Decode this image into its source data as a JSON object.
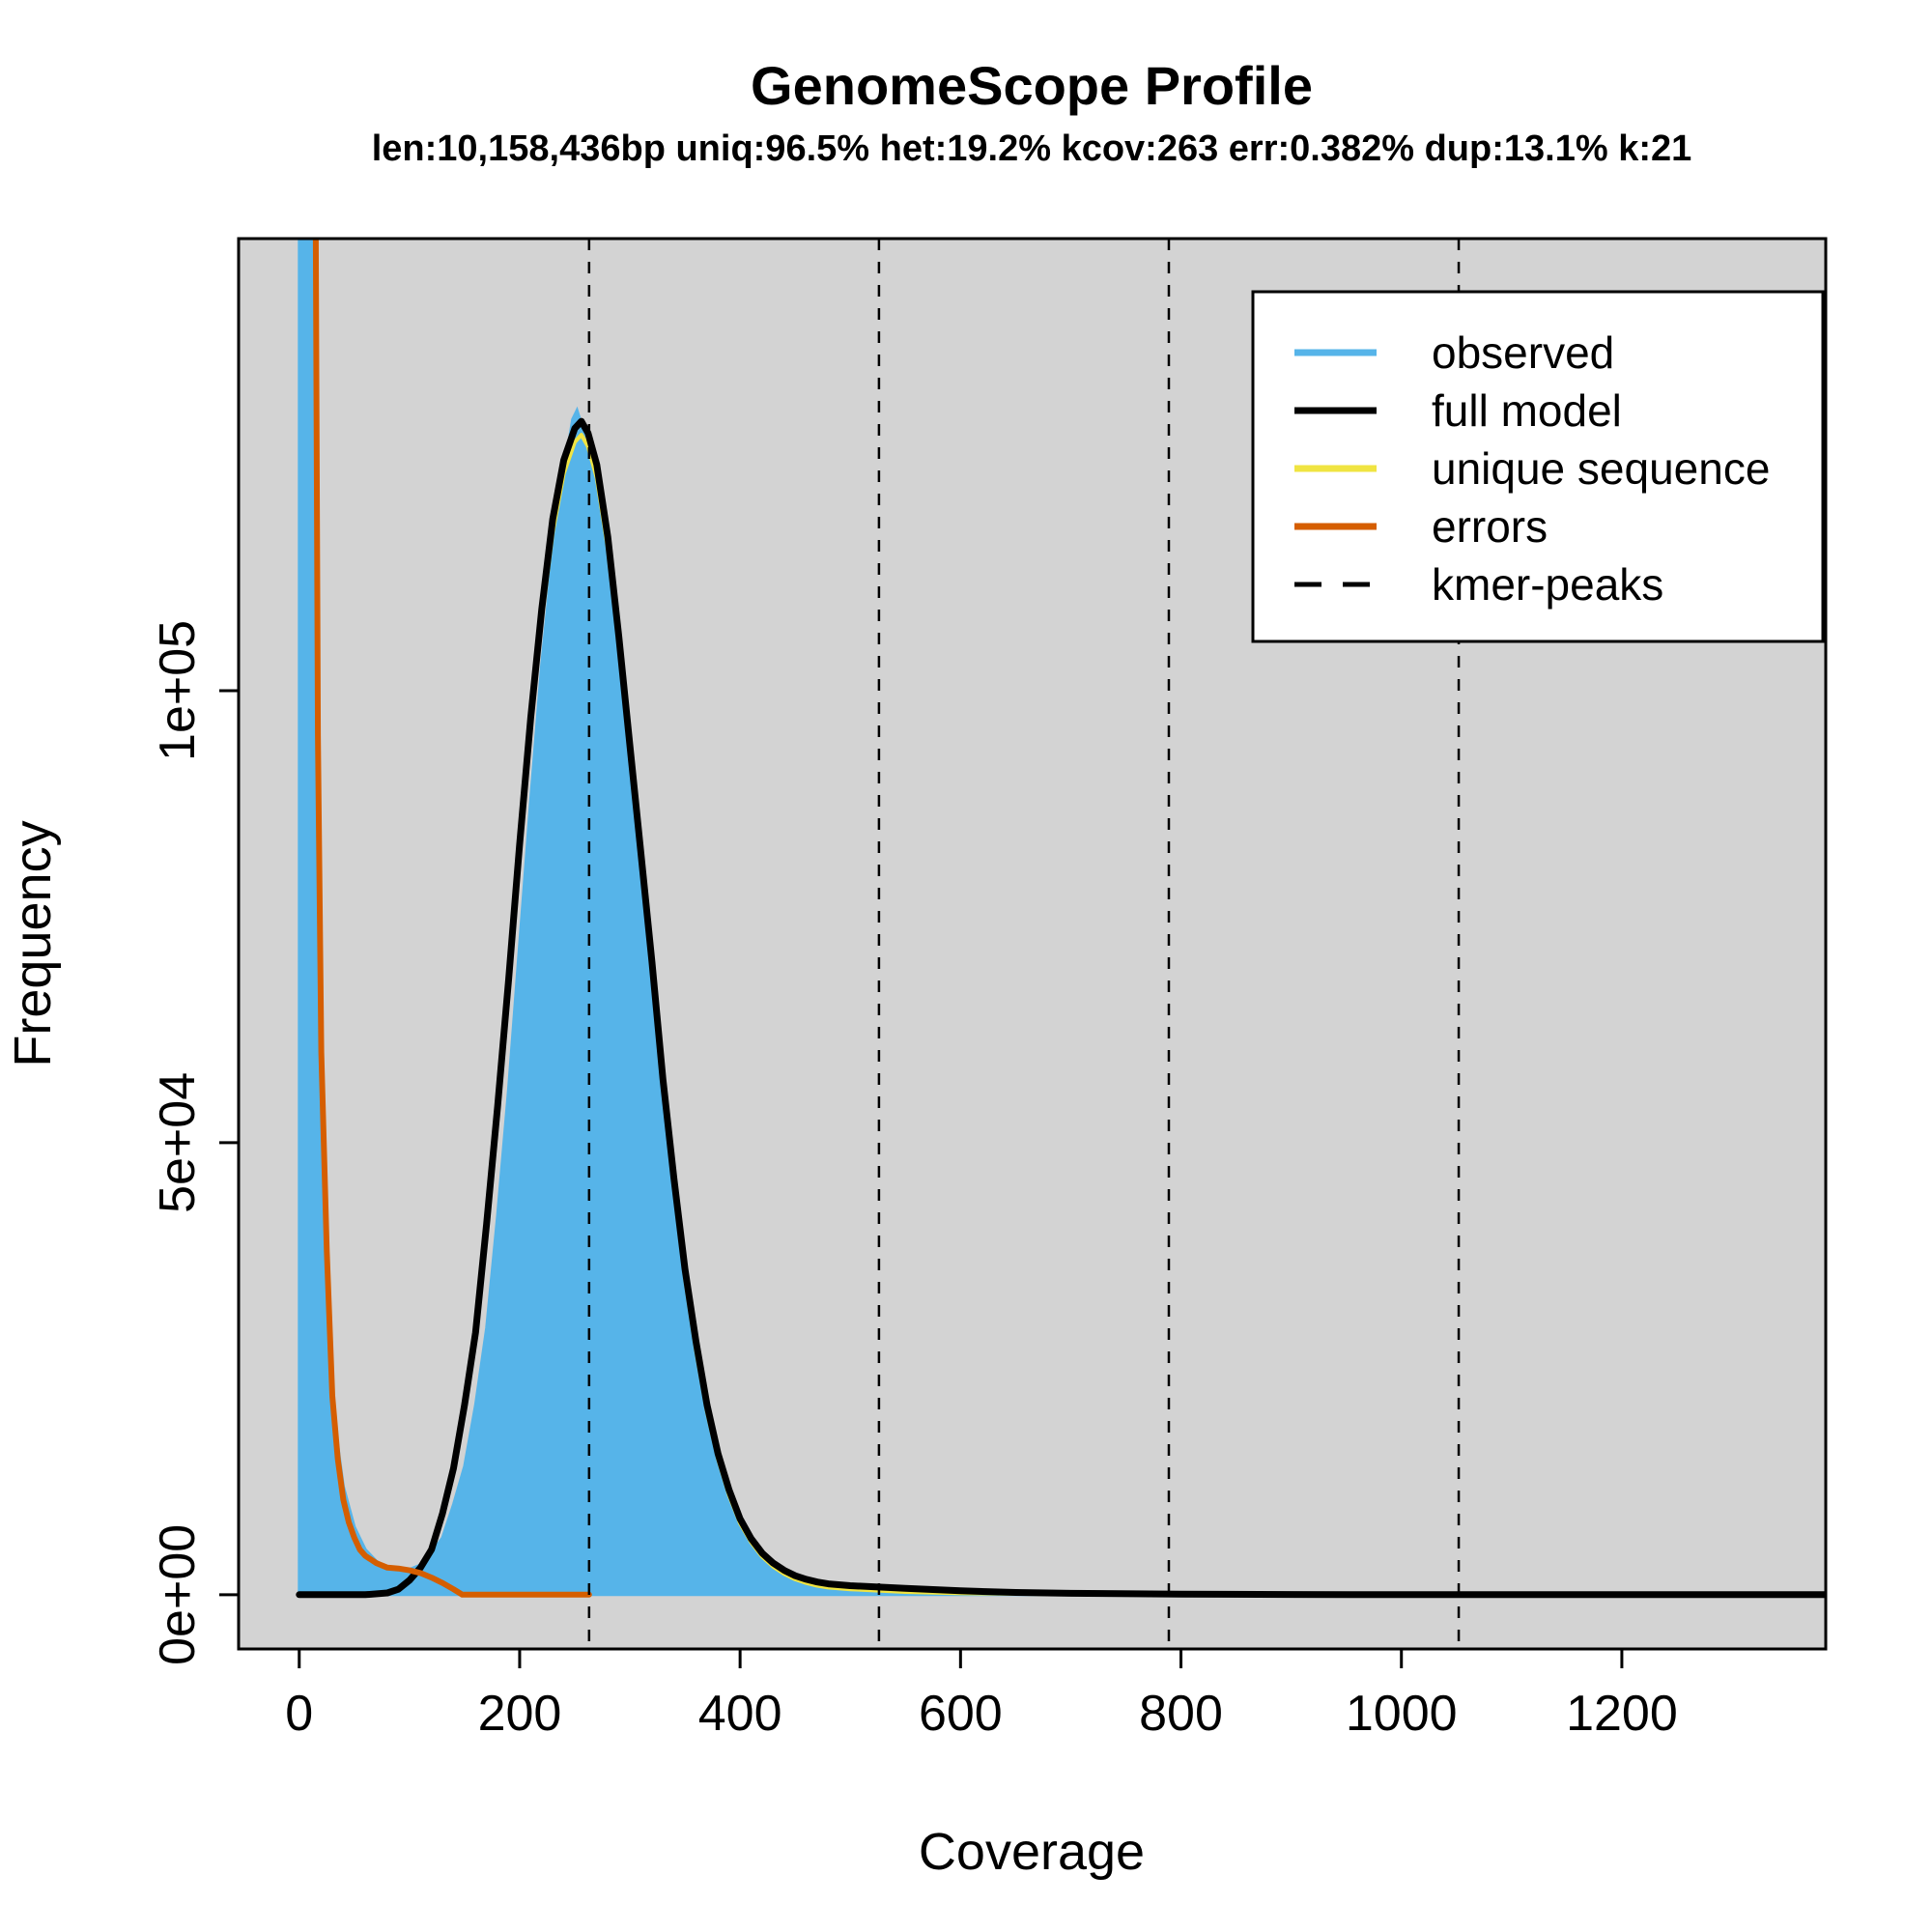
{
  "chart_data": {
    "type": "area",
    "title": "GenomeScope Profile",
    "subtitle": "len:10,158,436bp uniq:96.5%  het:19.2% kcov:263 err:0.382%  dup:13.1%  k:21",
    "xlabel": "Coverage",
    "ylabel": "Frequency",
    "xlim": [
      -55,
      1385
    ],
    "ylim": [
      -6000,
      150000
    ],
    "x_ticks": [
      0,
      200,
      400,
      600,
      800,
      1000,
      1200
    ],
    "x_tick_labels": [
      "0",
      "200",
      "400",
      "600",
      "800",
      "1000",
      "1200"
    ],
    "y_ticks": [
      0,
      50000,
      100000
    ],
    "y_tick_labels": [
      "0e+00",
      "5e+04",
      "1e+05"
    ],
    "background": "#d3d3d3",
    "kmer_peaks": [
      263,
      526,
      789,
      1052
    ],
    "legend": {
      "position": "top-right",
      "entries": [
        {
          "label": "observed",
          "color": "#56b4e9",
          "style": "solid"
        },
        {
          "label": "full model",
          "color": "#000000",
          "style": "solid"
        },
        {
          "label": "unique sequence",
          "color": "#f0e442",
          "style": "solid"
        },
        {
          "label": "errors",
          "color": "#d55e00",
          "style": "solid"
        },
        {
          "label": "kmer-peaks",
          "color": "#000000",
          "style": "dashed"
        }
      ]
    },
    "series": [
      {
        "name": "observed",
        "kind": "filled",
        "color": "#56b4e9",
        "points": [
          [
            0,
            150000
          ],
          [
            4,
            150000
          ],
          [
            8,
            150000
          ],
          [
            12,
            150000
          ],
          [
            14,
            150000
          ],
          [
            18,
            70000
          ],
          [
            22,
            40000
          ],
          [
            30,
            21000
          ],
          [
            40,
            12000
          ],
          [
            50,
            7500
          ],
          [
            60,
            5000
          ],
          [
            70,
            3700
          ],
          [
            80,
            3000
          ],
          [
            90,
            2700
          ],
          [
            100,
            2800
          ],
          [
            110,
            3300
          ],
          [
            120,
            4600
          ],
          [
            130,
            6300
          ],
          [
            140,
            10000
          ],
          [
            150,
            14200
          ],
          [
            160,
            21000
          ],
          [
            170,
            29500
          ],
          [
            180,
            42000
          ],
          [
            190,
            56000
          ],
          [
            200,
            72000
          ],
          [
            210,
            88000
          ],
          [
            220,
            103000
          ],
          [
            230,
            115000
          ],
          [
            240,
            124000
          ],
          [
            248,
            130000
          ],
          [
            252,
            131000
          ],
          [
            256,
            129500
          ],
          [
            260,
            127000
          ],
          [
            270,
            122000
          ],
          [
            280,
            114000
          ],
          [
            290,
            102000
          ],
          [
            300,
            90000
          ],
          [
            310,
            78000
          ],
          [
            320,
            66000
          ],
          [
            330,
            53000
          ],
          [
            340,
            43000
          ],
          [
            350,
            33000
          ],
          [
            360,
            25000
          ],
          [
            370,
            19000
          ],
          [
            380,
            14000
          ],
          [
            390,
            10700
          ],
          [
            400,
            7700
          ],
          [
            410,
            5700
          ],
          [
            420,
            4000
          ],
          [
            430,
            3100
          ],
          [
            440,
            2300
          ],
          [
            450,
            1800
          ],
          [
            470,
            1300
          ],
          [
            500,
            900
          ],
          [
            550,
            600
          ],
          [
            600,
            400
          ],
          [
            700,
            200
          ],
          [
            800,
            100
          ],
          [
            1000,
            30
          ],
          [
            1385,
            0
          ]
        ]
      },
      {
        "name": "full model",
        "color": "#000000",
        "points": [
          [
            0,
            0
          ],
          [
            60,
            0
          ],
          [
            80,
            200
          ],
          [
            90,
            600
          ],
          [
            100,
            1600
          ],
          [
            110,
            3000
          ],
          [
            120,
            5000
          ],
          [
            130,
            9000
          ],
          [
            140,
            14000
          ],
          [
            150,
            21000
          ],
          [
            160,
            29000
          ],
          [
            170,
            41000
          ],
          [
            180,
            54000
          ],
          [
            190,
            68000
          ],
          [
            200,
            83000
          ],
          [
            210,
            97000
          ],
          [
            220,
            109000
          ],
          [
            230,
            119000
          ],
          [
            240,
            125500
          ],
          [
            250,
            129000
          ],
          [
            256,
            129800
          ],
          [
            262,
            128500
          ],
          [
            270,
            125000
          ],
          [
            280,
            117000
          ],
          [
            290,
            106000
          ],
          [
            300,
            94000
          ],
          [
            310,
            82000
          ],
          [
            320,
            70000
          ],
          [
            330,
            57000
          ],
          [
            340,
            46000
          ],
          [
            350,
            36000
          ],
          [
            360,
            28000
          ],
          [
            370,
            21000
          ],
          [
            380,
            15600
          ],
          [
            390,
            11600
          ],
          [
            400,
            8400
          ],
          [
            410,
            6200
          ],
          [
            420,
            4600
          ],
          [
            430,
            3500
          ],
          [
            440,
            2700
          ],
          [
            450,
            2100
          ],
          [
            460,
            1700
          ],
          [
            470,
            1400
          ],
          [
            480,
            1200
          ],
          [
            500,
            1000
          ],
          [
            550,
            700
          ],
          [
            600,
            430
          ],
          [
            650,
            250
          ],
          [
            700,
            150
          ],
          [
            800,
            70
          ],
          [
            900,
            30
          ],
          [
            1000,
            10
          ],
          [
            1200,
            0
          ],
          [
            1385,
            0
          ]
        ]
      },
      {
        "name": "unique sequence",
        "color": "#f0e442",
        "points": [
          [
            0,
            0
          ],
          [
            60,
            0
          ],
          [
            80,
            200
          ],
          [
            90,
            600
          ],
          [
            100,
            1500
          ],
          [
            110,
            2900
          ],
          [
            120,
            4900
          ],
          [
            130,
            8800
          ],
          [
            140,
            13700
          ],
          [
            150,
            20600
          ],
          [
            160,
            28500
          ],
          [
            170,
            40500
          ],
          [
            180,
            53300
          ],
          [
            190,
            67000
          ],
          [
            200,
            82000
          ],
          [
            210,
            96000
          ],
          [
            220,
            107800
          ],
          [
            230,
            117500
          ],
          [
            240,
            124000
          ],
          [
            250,
            127500
          ],
          [
            256,
            128300
          ],
          [
            262,
            127000
          ],
          [
            270,
            123500
          ],
          [
            280,
            115700
          ],
          [
            290,
            104800
          ],
          [
            300,
            93000
          ],
          [
            310,
            81000
          ],
          [
            320,
            69000
          ],
          [
            330,
            56000
          ],
          [
            340,
            45000
          ],
          [
            350,
            35000
          ],
          [
            360,
            27000
          ],
          [
            370,
            20200
          ],
          [
            380,
            15000
          ],
          [
            390,
            11000
          ],
          [
            400,
            7900
          ],
          [
            410,
            5800
          ],
          [
            420,
            4200
          ],
          [
            430,
            3100
          ],
          [
            440,
            2300
          ],
          [
            450,
            1700
          ],
          [
            460,
            1300
          ],
          [
            470,
            1000
          ],
          [
            480,
            800
          ],
          [
            500,
            600
          ],
          [
            550,
            300
          ],
          [
            600,
            150
          ],
          [
            700,
            50
          ],
          [
            800,
            10
          ],
          [
            1000,
            0
          ],
          [
            1385,
            0
          ]
        ]
      },
      {
        "name": "errors",
        "color": "#d55e00",
        "points": [
          [
            15,
            150000
          ],
          [
            17,
            95000
          ],
          [
            20,
            60000
          ],
          [
            25,
            38000
          ],
          [
            30,
            22000
          ],
          [
            35,
            15000
          ],
          [
            40,
            10500
          ],
          [
            45,
            8000
          ],
          [
            50,
            6300
          ],
          [
            55,
            5000
          ],
          [
            60,
            4300
          ],
          [
            70,
            3500
          ],
          [
            80,
            3000
          ],
          [
            90,
            2900
          ],
          [
            100,
            2700
          ],
          [
            110,
            2400
          ],
          [
            120,
            1900
          ],
          [
            130,
            1300
          ],
          [
            140,
            600
          ],
          [
            148,
            0
          ],
          [
            263,
            0
          ]
        ]
      }
    ]
  }
}
